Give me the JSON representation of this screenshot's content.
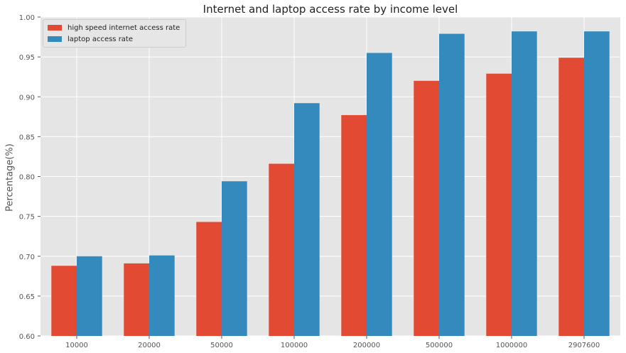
{
  "chart_data": {
    "type": "bar",
    "title": "Internet and laptop access rate by income level",
    "xlabel": "",
    "ylabel": "Percentage(%)",
    "categories": [
      "10000",
      "20000",
      "50000",
      "100000",
      "200000",
      "500000",
      "1000000",
      "2907600"
    ],
    "series": [
      {
        "name": "high speed internet access rate",
        "color": "#E24A33",
        "values": [
          0.688,
          0.691,
          0.743,
          0.816,
          0.877,
          0.92,
          0.929,
          0.949
        ]
      },
      {
        "name": "laptop access rate",
        "color": "#348ABD",
        "values": [
          0.7,
          0.701,
          0.794,
          0.892,
          0.955,
          0.979,
          0.982,
          0.982
        ]
      }
    ],
    "ylim": [
      0.6,
      1.0
    ],
    "yticks": [
      "0.60",
      "0.65",
      "0.70",
      "0.75",
      "0.80",
      "0.85",
      "0.90",
      "0.95",
      "1.00"
    ],
    "grid": true,
    "legend_position": "top-left",
    "style": {
      "background": "#E5E5E5",
      "grid_color": "#FFFFFF",
      "tick_color": "#555555"
    }
  }
}
